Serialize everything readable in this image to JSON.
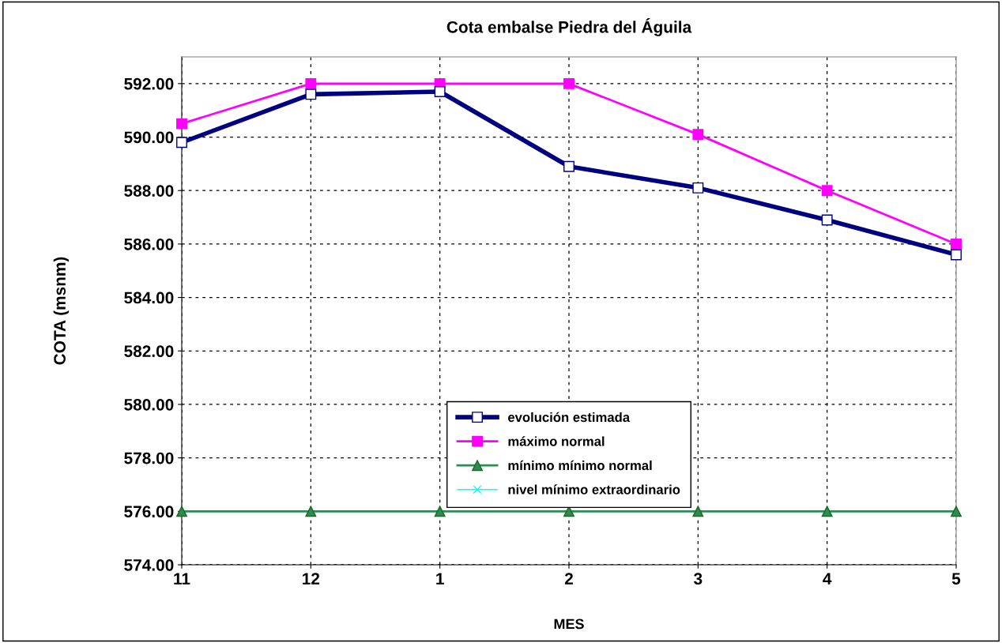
{
  "chart_data": {
    "type": "line",
    "title": "Cota embalse Piedra del Águila",
    "xlabel": "MES",
    "ylabel": "COTA (msnm)",
    "categories": [
      "11",
      "12",
      "1",
      "2",
      "3",
      "4",
      "5"
    ],
    "series": [
      {
        "name": "evolución estimada",
        "color": "#000080",
        "marker": "square",
        "values": [
          589.8,
          591.6,
          591.7,
          588.9,
          588.1,
          586.9,
          585.6
        ]
      },
      {
        "name": "máximo normal",
        "color": "#ff00ff",
        "marker": "square",
        "values": [
          590.5,
          592.0,
          592.0,
          592.0,
          590.1,
          588.0,
          586.0
        ]
      },
      {
        "name": "mínimo mínimo normal",
        "color": "#2e8b57",
        "marker": "triangle",
        "values": [
          576.0,
          576.0,
          576.0,
          576.0,
          576.0,
          576.0,
          576.0
        ]
      },
      {
        "name": "nivel mínimo extraordinario",
        "color": "#00ffff",
        "marker": "cross",
        "values": [
          null,
          null,
          null,
          null,
          null,
          null,
          null
        ]
      }
    ],
    "ylim": [
      574,
      593
    ],
    "yticks": [
      {
        "value": 574,
        "label": "574.00"
      },
      {
        "value": 576,
        "label": "576.00"
      },
      {
        "value": 578,
        "label": "578.00"
      },
      {
        "value": 580,
        "label": "580.00"
      },
      {
        "value": 582,
        "label": "582.00"
      },
      {
        "value": 584,
        "label": "584.00"
      },
      {
        "value": 586,
        "label": "586.00"
      },
      {
        "value": 588,
        "label": "588.00"
      },
      {
        "value": 590,
        "label": "590.00"
      },
      {
        "value": 592,
        "label": "592.00"
      }
    ],
    "grid": true,
    "legend": "bottom",
    "line_style": "solid"
  }
}
